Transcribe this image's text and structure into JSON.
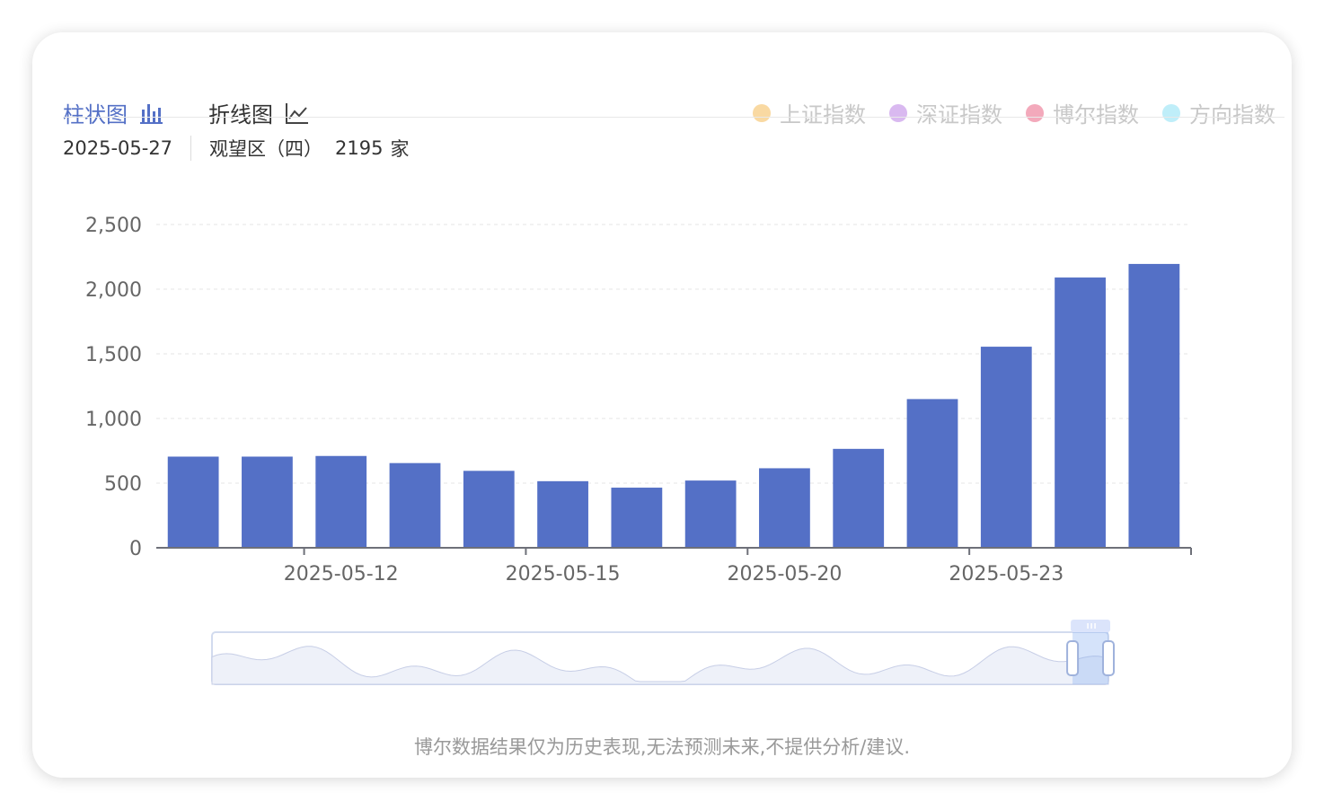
{
  "tabs": [
    {
      "label": "柱状图",
      "icon": "bar-chart-icon",
      "active": true
    },
    {
      "label": "折线图",
      "icon": "line-chart-icon",
      "active": false
    }
  ],
  "legend": [
    {
      "label": "上证指数",
      "color": "#f9d9a2"
    },
    {
      "label": "深证指数",
      "color": "#d9b9f0"
    },
    {
      "label": "博尔指数",
      "color": "#f3a9bb"
    },
    {
      "label": "方向指数",
      "color": "#bfeef9"
    }
  ],
  "info": {
    "date": "2025-05-27",
    "region": "观望区（四）",
    "count": "2195",
    "unit": "家"
  },
  "chart_data": {
    "type": "bar",
    "bar_color": "#5470c6",
    "values": [
      705,
      705,
      710,
      655,
      595,
      515,
      465,
      520,
      615,
      765,
      1150,
      1555,
      2090,
      2195
    ],
    "ylim": [
      0,
      2500
    ],
    "yticks": [
      0,
      500,
      1000,
      1500,
      2000,
      2500
    ],
    "ytick_labels": [
      "0",
      "500",
      "1,000",
      "1,500",
      "2,000",
      "2,500"
    ],
    "xtick_labels": [
      {
        "label": "2025-05-12",
        "index": 2
      },
      {
        "label": "2025-05-15",
        "index": 5
      },
      {
        "label": "2025-05-20",
        "index": 8
      },
      {
        "label": "2025-05-23",
        "index": 11
      }
    ],
    "grid": true
  },
  "zoom": {
    "start_percent": 96,
    "end_percent": 100
  },
  "footer": "博尔数据结果仅为历史表现,无法预测未来,不提供分析/建议."
}
